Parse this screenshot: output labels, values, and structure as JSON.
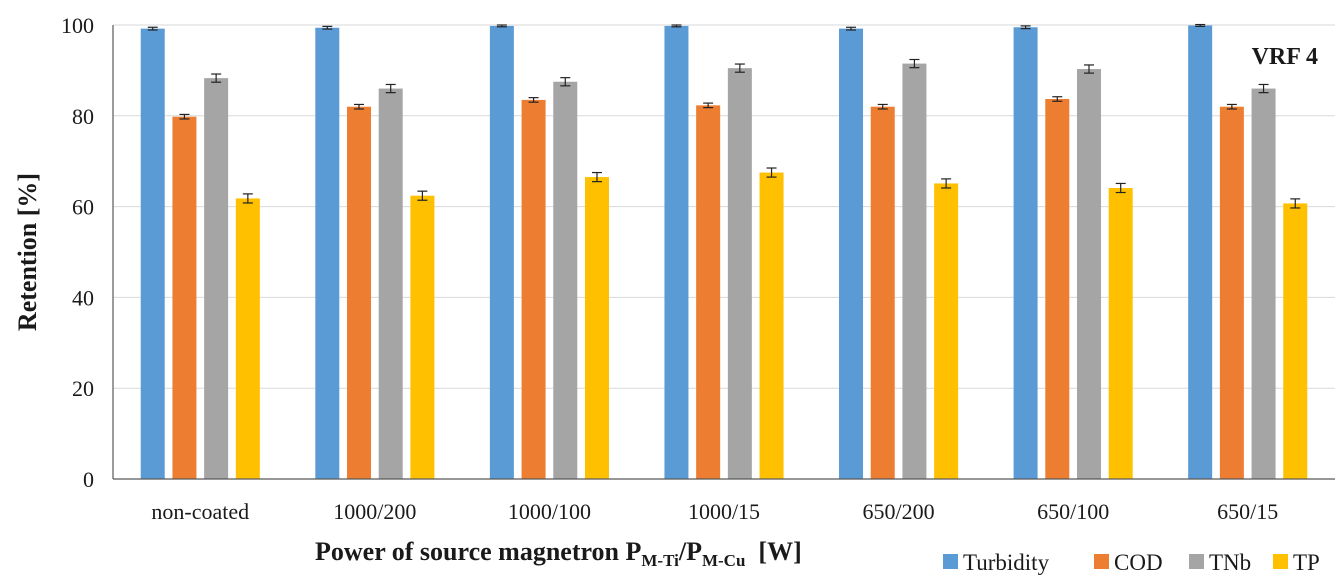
{
  "chart_data": {
    "type": "bar",
    "ylabel": "Retention [%]",
    "xlabel": {
      "prefix": "Power of source magnetron P",
      "sub1": "M-Ti",
      "sep": "/P",
      "sub2": "M-Cu",
      "suffix": "  [W]"
    },
    "annotation": "VRF 4",
    "ylim": [
      0,
      100
    ],
    "yticks": [
      0,
      20,
      40,
      60,
      80,
      100
    ],
    "grid": true,
    "legend_position": "bottom-right",
    "categories": [
      "non-coated",
      "1000/200",
      "1000/100",
      "1000/15",
      "650/200",
      "650/100",
      "650/15"
    ],
    "series": [
      {
        "name": "Turbidity",
        "color": "#5b9bd5",
        "values": [
          99.2,
          99.4,
          99.8,
          99.8,
          99.2,
          99.5,
          99.9
        ],
        "errors": [
          0.3,
          0.3,
          0.2,
          0.2,
          0.3,
          0.3,
          0.2
        ]
      },
      {
        "name": "COD",
        "color": "#ed7d31",
        "values": [
          79.8,
          82.0,
          83.5,
          82.3,
          82.0,
          83.7,
          82.0
        ],
        "errors": [
          0.5,
          0.5,
          0.5,
          0.5,
          0.5,
          0.5,
          0.5
        ]
      },
      {
        "name": "TNb",
        "color": "#a5a5a5",
        "values": [
          88.3,
          86.0,
          87.5,
          90.5,
          91.5,
          90.3,
          86.0
        ],
        "errors": [
          0.9,
          0.9,
          0.9,
          0.9,
          0.9,
          0.9,
          0.9
        ]
      },
      {
        "name": "TP",
        "color": "#ffc000",
        "values": [
          61.8,
          62.4,
          66.5,
          67.5,
          65.1,
          64.1,
          60.7
        ],
        "errors": [
          1.0,
          1.0,
          1.0,
          1.0,
          1.0,
          1.0,
          1.0
        ]
      }
    ]
  }
}
